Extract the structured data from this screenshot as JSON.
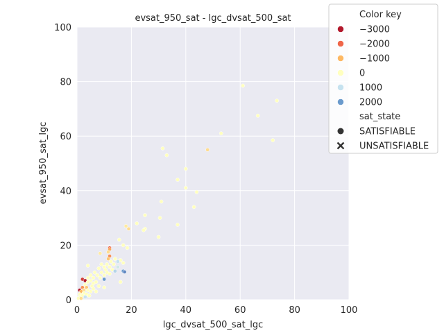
{
  "chart_data": {
    "type": "scatter",
    "title": "evsat_950_sat - lgc_dvsat_500_sat",
    "xlabel": "lgc_dvsat_500_sat_lgc",
    "ylabel": "evsat_950_sat_lgc",
    "xlim": [
      0,
      100
    ],
    "ylim": [
      0,
      100
    ],
    "xticks": [
      "0",
      "20",
      "40",
      "60",
      "80",
      "100"
    ],
    "yticks": [
      "0",
      "20",
      "40",
      "60",
      "80",
      "100"
    ],
    "grid": true,
    "legend_placement": "top-right",
    "legend": {
      "color_title": "Color key",
      "color_entries": [
        {
          "label": "−3000",
          "color": "#b2182b"
        },
        {
          "label": "−2000",
          "color": "#ef6548"
        },
        {
          "label": "−1000",
          "color": "#fdb863"
        },
        {
          "label": "0",
          "color": "#ffffbf"
        },
        {
          "label": "1000",
          "color": "#c6e2ef"
        },
        {
          "label": "2000",
          "color": "#6a9acc"
        }
      ],
      "marker_title": "sat_state",
      "marker_entries": [
        {
          "label": "SATISFIABLE",
          "marker": "circle"
        },
        {
          "label": "UNSATISFIABLE",
          "marker": "x"
        }
      ]
    },
    "points": [
      {
        "x": 61,
        "y": 78.5,
        "c": 0
      },
      {
        "x": 73.5,
        "y": 73,
        "c": 0
      },
      {
        "x": 66.5,
        "y": 67.5,
        "c": 0
      },
      {
        "x": 53,
        "y": 61,
        "c": 0
      },
      {
        "x": 72,
        "y": 58.5,
        "c": 0
      },
      {
        "x": 31.5,
        "y": 55.5,
        "c": 0
      },
      {
        "x": 48,
        "y": 55,
        "c": -500
      },
      {
        "x": 33,
        "y": 53,
        "c": 0
      },
      {
        "x": 40,
        "y": 48,
        "c": 0
      },
      {
        "x": 37,
        "y": 44,
        "c": 0
      },
      {
        "x": 40,
        "y": 41,
        "c": 0
      },
      {
        "x": 44,
        "y": 39.5,
        "c": 0
      },
      {
        "x": 31,
        "y": 36,
        "c": 0
      },
      {
        "x": 43,
        "y": 34,
        "c": 0
      },
      {
        "x": 25,
        "y": 31,
        "c": 0
      },
      {
        "x": 30.5,
        "y": 30,
        "c": 0
      },
      {
        "x": 22,
        "y": 28,
        "c": 0
      },
      {
        "x": 37,
        "y": 27.5,
        "c": 0
      },
      {
        "x": 18,
        "y": 27,
        "c": -300
      },
      {
        "x": 19,
        "y": 26,
        "c": -500
      },
      {
        "x": 25,
        "y": 26,
        "c": 0
      },
      {
        "x": 24.5,
        "y": 25.5,
        "c": 0
      },
      {
        "x": 30,
        "y": 23,
        "c": 0
      },
      {
        "x": 15.5,
        "y": 22,
        "c": 0
      },
      {
        "x": 17,
        "y": 20,
        "c": 0
      },
      {
        "x": 18.5,
        "y": 19,
        "c": 0
      },
      {
        "x": 12,
        "y": 19,
        "c": -2000
      },
      {
        "x": 12,
        "y": 18.5,
        "c": -1200
      },
      {
        "x": 11.5,
        "y": 17.5,
        "c": -500
      },
      {
        "x": 8.5,
        "y": 17,
        "c": -300
      },
      {
        "x": 12,
        "y": 16,
        "c": -1500
      },
      {
        "x": 11.5,
        "y": 15,
        "c": -800
      },
      {
        "x": 14,
        "y": 15,
        "c": 0
      },
      {
        "x": 16,
        "y": 14.5,
        "c": 0
      },
      {
        "x": 12.5,
        "y": 14,
        "c": 0
      },
      {
        "x": 15,
        "y": 14,
        "c": 1000
      },
      {
        "x": 17,
        "y": 13.5,
        "c": 0
      },
      {
        "x": 9,
        "y": 13,
        "c": 0
      },
      {
        "x": 11,
        "y": 13,
        "c": 0
      },
      {
        "x": 13.5,
        "y": 13,
        "c": 0
      },
      {
        "x": 4,
        "y": 12.5,
        "c": 0
      },
      {
        "x": 10,
        "y": 12,
        "c": 0
      },
      {
        "x": 12,
        "y": 12,
        "c": 0
      },
      {
        "x": 15,
        "y": 12,
        "c": 800
      },
      {
        "x": 8,
        "y": 11.5,
        "c": 0
      },
      {
        "x": 10.5,
        "y": 11,
        "c": 0
      },
      {
        "x": 13,
        "y": 11,
        "c": 0
      },
      {
        "x": 14,
        "y": 10.5,
        "c": 1200
      },
      {
        "x": 17,
        "y": 10.5,
        "c": 2000
      },
      {
        "x": 17.5,
        "y": 10.2,
        "c": 2200
      },
      {
        "x": 6.5,
        "y": 10,
        "c": 0
      },
      {
        "x": 9,
        "y": 10,
        "c": 0
      },
      {
        "x": 11,
        "y": 10,
        "c": 0
      },
      {
        "x": 12,
        "y": 9.5,
        "c": 0
      },
      {
        "x": 5,
        "y": 9,
        "c": 0
      },
      {
        "x": 7.5,
        "y": 9,
        "c": 0
      },
      {
        "x": 10,
        "y": 9,
        "c": 0
      },
      {
        "x": 4,
        "y": 8,
        "c": 0
      },
      {
        "x": 6,
        "y": 8,
        "c": 0
      },
      {
        "x": 8.5,
        "y": 8,
        "c": 0
      },
      {
        "x": 2,
        "y": 7.5,
        "c": -2500
      },
      {
        "x": 3,
        "y": 7,
        "c": -3000
      },
      {
        "x": 5,
        "y": 7,
        "c": 0
      },
      {
        "x": 10,
        "y": 7.5,
        "c": 2000
      },
      {
        "x": 16,
        "y": 6.5,
        "c": 0
      },
      {
        "x": 4,
        "y": 6.5,
        "c": 0
      },
      {
        "x": 6,
        "y": 6,
        "c": 0
      },
      {
        "x": 7,
        "y": 6.5,
        "c": 0
      },
      {
        "x": 3,
        "y": 5.5,
        "c": 0
      },
      {
        "x": 5.5,
        "y": 5,
        "c": 0
      },
      {
        "x": 8,
        "y": 5,
        "c": 0
      },
      {
        "x": 2,
        "y": 4.5,
        "c": -1500
      },
      {
        "x": 3.5,
        "y": 4.5,
        "c": -800
      },
      {
        "x": 10,
        "y": 4.5,
        "c": 0
      },
      {
        "x": 6,
        "y": 4,
        "c": 0
      },
      {
        "x": 1,
        "y": 3.5,
        "c": -3000
      },
      {
        "x": 2.5,
        "y": 3.5,
        "c": -500
      },
      {
        "x": 4,
        "y": 3.5,
        "c": 0
      },
      {
        "x": 5,
        "y": 3,
        "c": 0
      },
      {
        "x": 1.5,
        "y": 3,
        "c": -1000
      },
      {
        "x": 2.5,
        "y": 2.5,
        "c": 0
      },
      {
        "x": 3.5,
        "y": 2,
        "c": 0
      },
      {
        "x": 1,
        "y": 2,
        "c": 0
      },
      {
        "x": 2,
        "y": 1.5,
        "c": 0
      },
      {
        "x": 3,
        "y": 1,
        "c": 1000
      },
      {
        "x": 1,
        "y": 1,
        "c": 0
      },
      {
        "x": 0.5,
        "y": 0.5,
        "c": 0
      },
      {
        "x": 1.5,
        "y": 0.5,
        "c": -500
      },
      {
        "x": 4.5,
        "y": 1.5,
        "c": 0
      },
      {
        "x": 7,
        "y": 3,
        "c": 0
      }
    ]
  }
}
